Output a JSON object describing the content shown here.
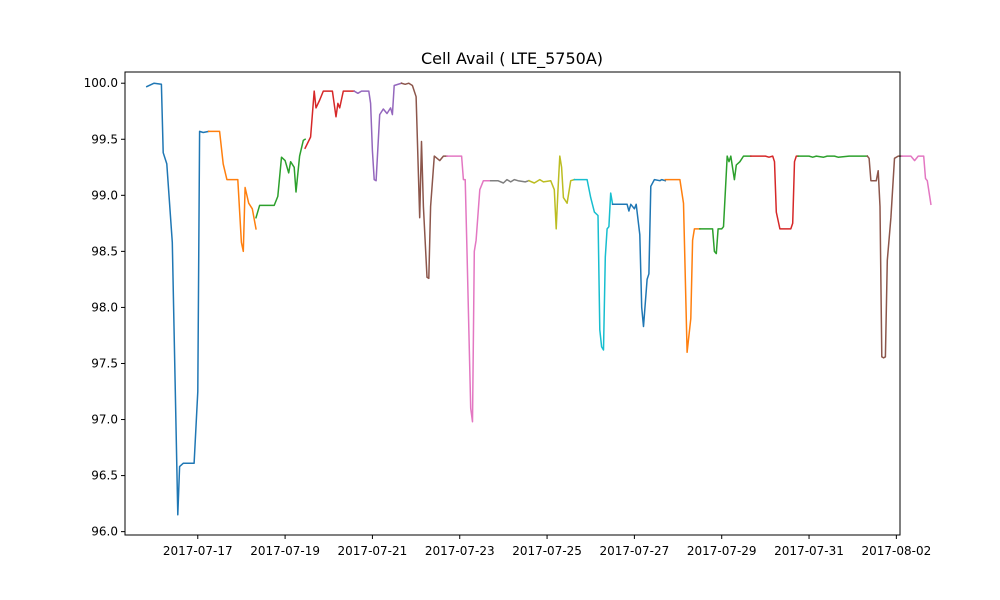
{
  "chart_data": {
    "type": "line",
    "title": "Cell Avail ( LTE_5750A)",
    "xlabel": "",
    "ylabel": "",
    "x_scale": "date",
    "xlim": [
      "2017-07-15T08:00",
      "2017-08-02T02:00"
    ],
    "ylim": [
      95.97,
      100.1
    ],
    "x_ticks": [
      "2017-07-17",
      "2017-07-19",
      "2017-07-21",
      "2017-07-23",
      "2017-07-25",
      "2017-07-27",
      "2017-07-29",
      "2017-07-31",
      "2017-08-02"
    ],
    "y_ticks": [
      96.0,
      96.5,
      97.0,
      97.5,
      98.0,
      98.5,
      99.0,
      99.5,
      100.0
    ],
    "y_tick_labels": [
      "96.0",
      "96.5",
      "97.0",
      "97.5",
      "98.0",
      "98.5",
      "99.0",
      "99.5",
      "100.0"
    ],
    "grid": false,
    "legend": "none",
    "series": [
      {
        "color": "#1f77b4",
        "points": [
          [
            "2017-07-15T20:00",
            99.97
          ],
          [
            "2017-07-16T00:00",
            100.0
          ],
          [
            "2017-07-16T04:00",
            99.99
          ],
          [
            "2017-07-16T05:00",
            99.38
          ],
          [
            "2017-07-16T07:00",
            99.28
          ],
          [
            "2017-07-16T10:00",
            98.58
          ],
          [
            "2017-07-16T13:00",
            96.15
          ],
          [
            "2017-07-16T14:00",
            96.58
          ],
          [
            "2017-07-16T16:00",
            96.61
          ],
          [
            "2017-07-16T22:00",
            96.61
          ],
          [
            "2017-07-17T00:00",
            97.25
          ],
          [
            "2017-07-17T01:00",
            99.57
          ],
          [
            "2017-07-17T03:00",
            99.56
          ],
          [
            "2017-07-17T06:00",
            99.57
          ]
        ]
      },
      {
        "color": "#ff7f0e",
        "points": [
          [
            "2017-07-17T06:00",
            99.57
          ],
          [
            "2017-07-17T12:00",
            99.57
          ],
          [
            "2017-07-17T14:00",
            99.28
          ],
          [
            "2017-07-17T16:00",
            99.14
          ],
          [
            "2017-07-17T22:00",
            99.14
          ],
          [
            "2017-07-18T00:00",
            98.58
          ],
          [
            "2017-07-18T01:00",
            98.5
          ],
          [
            "2017-07-18T02:00",
            99.07
          ],
          [
            "2017-07-18T04:00",
            98.93
          ],
          [
            "2017-07-18T06:00",
            98.88
          ],
          [
            "2017-07-18T08:00",
            98.7
          ]
        ]
      },
      {
        "color": "#2ca02c",
        "points": [
          [
            "2017-07-18T08:00",
            98.8
          ],
          [
            "2017-07-18T10:00",
            98.91
          ],
          [
            "2017-07-18T18:00",
            98.91
          ],
          [
            "2017-07-18T20:00",
            98.99
          ],
          [
            "2017-07-18T22:00",
            99.34
          ],
          [
            "2017-07-19T00:00",
            99.31
          ],
          [
            "2017-07-19T02:00",
            99.2
          ],
          [
            "2017-07-19T03:00",
            99.3
          ],
          [
            "2017-07-19T05:00",
            99.25
          ],
          [
            "2017-07-19T06:00",
            99.03
          ],
          [
            "2017-07-19T08:00",
            99.35
          ],
          [
            "2017-07-19T10:00",
            99.49
          ],
          [
            "2017-07-19T11:00",
            99.5
          ]
        ]
      },
      {
        "color": "#d62728",
        "points": [
          [
            "2017-07-19T11:00",
            99.42
          ],
          [
            "2017-07-19T14:00",
            99.52
          ],
          [
            "2017-07-19T16:00",
            99.93
          ],
          [
            "2017-07-19T17:00",
            99.78
          ],
          [
            "2017-07-19T19:00",
            99.85
          ],
          [
            "2017-07-19T21:00",
            99.93
          ],
          [
            "2017-07-20T02:00",
            99.93
          ],
          [
            "2017-07-20T04:00",
            99.7
          ],
          [
            "2017-07-20T05:00",
            99.82
          ],
          [
            "2017-07-20T06:00",
            99.78
          ],
          [
            "2017-07-20T08:00",
            99.93
          ],
          [
            "2017-07-20T12:00",
            99.93
          ],
          [
            "2017-07-20T14:00",
            99.93
          ]
        ]
      },
      {
        "color": "#9467bd",
        "points": [
          [
            "2017-07-20T14:00",
            99.93
          ],
          [
            "2017-07-20T16:00",
            99.91
          ],
          [
            "2017-07-20T18:00",
            99.93
          ],
          [
            "2017-07-20T22:00",
            99.93
          ],
          [
            "2017-07-20T23:00",
            99.82
          ],
          [
            "2017-07-21T00:00",
            99.4
          ],
          [
            "2017-07-21T01:00",
            99.14
          ],
          [
            "2017-07-21T02:00",
            99.13
          ],
          [
            "2017-07-21T04:00",
            99.72
          ],
          [
            "2017-07-21T06:00",
            99.77
          ],
          [
            "2017-07-21T08:00",
            99.73
          ],
          [
            "2017-07-21T10:00",
            99.78
          ],
          [
            "2017-07-21T11:00",
            99.72
          ],
          [
            "2017-07-21T12:00",
            99.98
          ],
          [
            "2017-07-21T16:00",
            100.0
          ]
        ]
      },
      {
        "color": "#8c564b",
        "points": [
          [
            "2017-07-21T16:00",
            100.0
          ],
          [
            "2017-07-21T18:00",
            99.99
          ],
          [
            "2017-07-21T20:00",
            100.0
          ],
          [
            "2017-07-21T22:00",
            99.98
          ],
          [
            "2017-07-22T00:00",
            99.88
          ],
          [
            "2017-07-22T02:00",
            98.8
          ],
          [
            "2017-07-22T03:00",
            99.48
          ],
          [
            "2017-07-22T04:00",
            98.9
          ],
          [
            "2017-07-22T06:00",
            98.27
          ],
          [
            "2017-07-22T07:00",
            98.26
          ],
          [
            "2017-07-22T08:00",
            98.9
          ],
          [
            "2017-07-22T10:00",
            99.35
          ],
          [
            "2017-07-22T13:00",
            99.31
          ],
          [
            "2017-07-22T15:00",
            99.35
          ],
          [
            "2017-07-22T17:00",
            99.35
          ]
        ]
      },
      {
        "color": "#e377c2",
        "points": [
          [
            "2017-07-22T17:00",
            99.35
          ],
          [
            "2017-07-23T01:00",
            99.35
          ],
          [
            "2017-07-23T02:00",
            99.14
          ],
          [
            "2017-07-23T03:00",
            99.14
          ],
          [
            "2017-07-23T04:00",
            98.5
          ],
          [
            "2017-07-23T06:00",
            97.1
          ],
          [
            "2017-07-23T07:00",
            96.98
          ],
          [
            "2017-07-23T08:00",
            98.5
          ],
          [
            "2017-07-23T09:00",
            98.6
          ],
          [
            "2017-07-23T11:00",
            99.05
          ],
          [
            "2017-07-23T13:00",
            99.13
          ],
          [
            "2017-07-23T17:00",
            99.13
          ]
        ]
      },
      {
        "color": "#7f7f7f",
        "points": [
          [
            "2017-07-23T17:00",
            99.13
          ],
          [
            "2017-07-23T21:00",
            99.13
          ],
          [
            "2017-07-24T00:00",
            99.11
          ],
          [
            "2017-07-24T02:00",
            99.14
          ],
          [
            "2017-07-24T04:00",
            99.12
          ],
          [
            "2017-07-24T06:00",
            99.14
          ],
          [
            "2017-07-24T08:00",
            99.13
          ],
          [
            "2017-07-24T12:00",
            99.12
          ],
          [
            "2017-07-24T14:00",
            99.13
          ]
        ]
      },
      {
        "color": "#bcbd22",
        "points": [
          [
            "2017-07-24T14:00",
            99.13
          ],
          [
            "2017-07-24T17:00",
            99.11
          ],
          [
            "2017-07-24T20:00",
            99.14
          ],
          [
            "2017-07-24T22:00",
            99.12
          ],
          [
            "2017-07-25T02:00",
            99.13
          ],
          [
            "2017-07-25T04:00",
            99.05
          ],
          [
            "2017-07-25T05:00",
            98.7
          ],
          [
            "2017-07-25T06:00",
            99.05
          ],
          [
            "2017-07-25T07:00",
            99.35
          ],
          [
            "2017-07-25T08:00",
            99.25
          ],
          [
            "2017-07-25T09:00",
            98.98
          ],
          [
            "2017-07-25T11:00",
            98.93
          ],
          [
            "2017-07-25T13:00",
            99.13
          ],
          [
            "2017-07-25T15:00",
            99.14
          ]
        ]
      },
      {
        "color": "#17becf",
        "points": [
          [
            "2017-07-25T15:00",
            99.14
          ],
          [
            "2017-07-25T22:00",
            99.14
          ],
          [
            "2017-07-26T00:00",
            98.98
          ],
          [
            "2017-07-26T02:00",
            98.85
          ],
          [
            "2017-07-26T04:00",
            98.82
          ],
          [
            "2017-07-26T05:00",
            97.8
          ],
          [
            "2017-07-26T06:00",
            97.65
          ],
          [
            "2017-07-26T07:00",
            97.62
          ],
          [
            "2017-07-26T08:00",
            98.45
          ],
          [
            "2017-07-26T09:00",
            98.7
          ],
          [
            "2017-07-26T10:00",
            98.72
          ],
          [
            "2017-07-26T11:00",
            99.02
          ],
          [
            "2017-07-26T12:00",
            98.92
          ]
        ]
      },
      {
        "color": "#1f77b4",
        "points": [
          [
            "2017-07-26T12:00",
            98.92
          ],
          [
            "2017-07-26T20:00",
            98.92
          ],
          [
            "2017-07-26T21:00",
            98.86
          ],
          [
            "2017-07-26T22:00",
            98.92
          ],
          [
            "2017-07-27T00:00",
            98.88
          ],
          [
            "2017-07-27T01:00",
            98.92
          ],
          [
            "2017-07-27T03:00",
            98.65
          ],
          [
            "2017-07-27T04:00",
            98.0
          ],
          [
            "2017-07-27T05:00",
            97.83
          ],
          [
            "2017-07-27T07:00",
            98.25
          ],
          [
            "2017-07-27T08:00",
            98.3
          ],
          [
            "2017-07-27T09:00",
            99.08
          ],
          [
            "2017-07-27T11:00",
            99.14
          ],
          [
            "2017-07-27T14:00",
            99.13
          ],
          [
            "2017-07-27T15:00",
            99.14
          ],
          [
            "2017-07-27T17:00",
            99.13
          ]
        ]
      },
      {
        "color": "#ff7f0e",
        "points": [
          [
            "2017-07-27T17:00",
            99.14
          ],
          [
            "2017-07-28T01:00",
            99.14
          ],
          [
            "2017-07-28T03:00",
            98.93
          ],
          [
            "2017-07-28T05:00",
            97.6
          ],
          [
            "2017-07-28T07:00",
            97.9
          ],
          [
            "2017-07-28T08:00",
            98.6
          ],
          [
            "2017-07-28T09:00",
            98.7
          ],
          [
            "2017-07-28T12:00",
            98.7
          ]
        ]
      },
      {
        "color": "#2ca02c",
        "points": [
          [
            "2017-07-28T12:00",
            98.7
          ],
          [
            "2017-07-28T19:00",
            98.7
          ],
          [
            "2017-07-28T20:00",
            98.5
          ],
          [
            "2017-07-28T21:00",
            98.48
          ],
          [
            "2017-07-28T22:00",
            98.7
          ],
          [
            "2017-07-29T00:00",
            98.7
          ],
          [
            "2017-07-29T01:00",
            98.72
          ],
          [
            "2017-07-29T03:00",
            99.35
          ],
          [
            "2017-07-29T04:00",
            99.3
          ],
          [
            "2017-07-29T05:00",
            99.35
          ],
          [
            "2017-07-29T07:00",
            99.14
          ],
          [
            "2017-07-29T08:00",
            99.27
          ],
          [
            "2017-07-29T10:00",
            99.3
          ],
          [
            "2017-07-29T12:00",
            99.35
          ],
          [
            "2017-07-29T16:00",
            99.35
          ]
        ]
      },
      {
        "color": "#d62728",
        "points": [
          [
            "2017-07-29T16:00",
            99.35
          ],
          [
            "2017-07-30T00:00",
            99.35
          ],
          [
            "2017-07-30T02:00",
            99.34
          ],
          [
            "2017-07-30T04:00",
            99.35
          ],
          [
            "2017-07-30T05:00",
            99.3
          ],
          [
            "2017-07-30T06:00",
            98.85
          ],
          [
            "2017-07-30T08:00",
            98.7
          ],
          [
            "2017-07-30T14:00",
            98.7
          ],
          [
            "2017-07-30T15:00",
            98.75
          ],
          [
            "2017-07-30T16:00",
            99.3
          ],
          [
            "2017-07-30T17:00",
            99.35
          ],
          [
            "2017-07-30T18:00",
            99.35
          ]
        ]
      },
      {
        "color": "#2ca02c",
        "points": [
          [
            "2017-07-30T18:00",
            99.35
          ],
          [
            "2017-07-31T00:00",
            99.35
          ],
          [
            "2017-07-31T02:00",
            99.34
          ],
          [
            "2017-07-31T04:00",
            99.35
          ],
          [
            "2017-07-31T08:00",
            99.34
          ],
          [
            "2017-07-31T10:00",
            99.35
          ],
          [
            "2017-07-31T14:00",
            99.35
          ],
          [
            "2017-07-31T16:00",
            99.34
          ],
          [
            "2017-07-31T22:00",
            99.35
          ],
          [
            "2017-08-01T08:00",
            99.35
          ]
        ]
      },
      {
        "color": "#8c564b",
        "points": [
          [
            "2017-08-01T08:00",
            99.35
          ],
          [
            "2017-08-01T09:00",
            99.33
          ],
          [
            "2017-08-01T10:00",
            99.13
          ],
          [
            "2017-08-01T13:00",
            99.13
          ],
          [
            "2017-08-01T14:00",
            99.22
          ],
          [
            "2017-08-01T15:00",
            98.9
          ],
          [
            "2017-08-01T16:00",
            97.56
          ],
          [
            "2017-08-01T17:00",
            97.55
          ],
          [
            "2017-08-01T18:00",
            97.56
          ],
          [
            "2017-08-01T19:00",
            98.42
          ],
          [
            "2017-08-01T21:00",
            98.8
          ],
          [
            "2017-08-01T23:00",
            99.33
          ],
          [
            "2017-08-02T01:00",
            99.35
          ],
          [
            "2017-08-02T03:00",
            99.35
          ]
        ]
      },
      {
        "color": "#e377c2",
        "points": [
          [
            "2017-08-02T03:00",
            99.35
          ],
          [
            "2017-08-02T08:00",
            99.35
          ],
          [
            "2017-08-02T10:00",
            99.31
          ],
          [
            "2017-08-02T12:00",
            99.35
          ],
          [
            "2017-08-02T15:00",
            99.35
          ],
          [
            "2017-08-02T16:00",
            99.15
          ],
          [
            "2017-08-02T17:00",
            99.13
          ],
          [
            "2017-08-02T19:00",
            98.92
          ]
        ]
      }
    ]
  }
}
